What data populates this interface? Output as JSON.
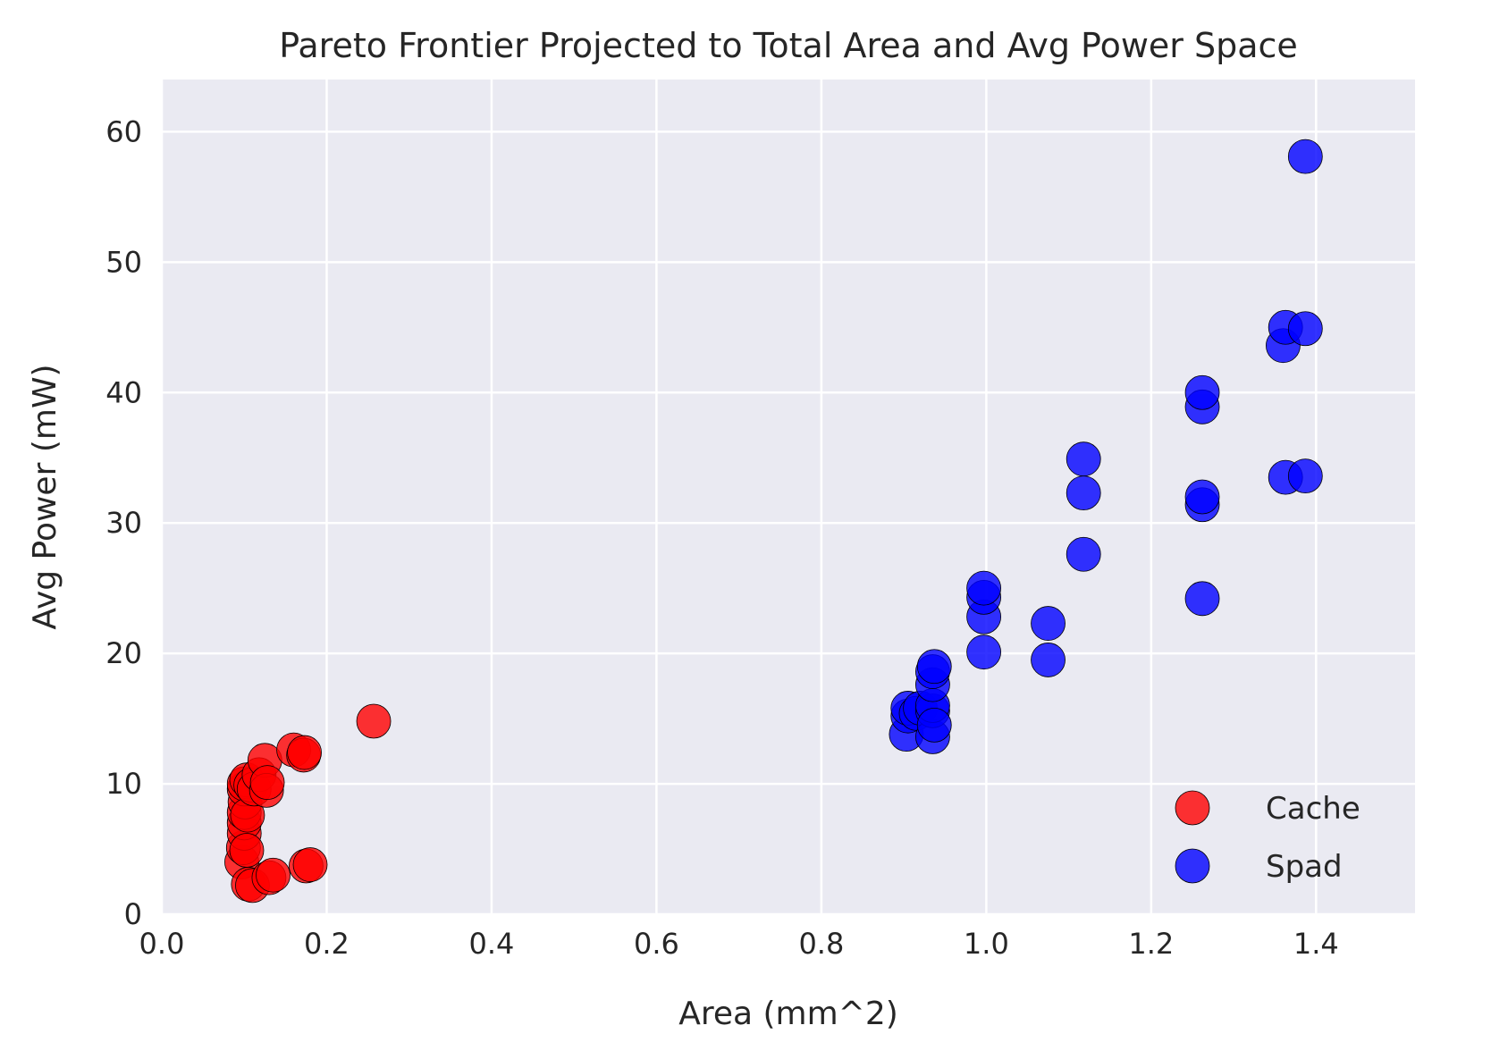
{
  "chart_data": {
    "type": "scatter",
    "title": "Pareto Frontier Projected to Total Area and Avg Power Space",
    "xlabel": "Area (mm^2)",
    "ylabel": "Avg Power (mW)",
    "xlim": [
      0.0,
      1.52
    ],
    "ylim": [
      0,
      64
    ],
    "xticks": [
      "0.0",
      "0.2",
      "0.4",
      "0.6",
      "0.8",
      "1.0",
      "1.2",
      "1.4"
    ],
    "xtick_values": [
      0.0,
      0.2,
      0.4,
      0.6,
      0.8,
      1.0,
      1.2,
      1.4
    ],
    "yticks": [
      "0",
      "10",
      "20",
      "30",
      "40",
      "50",
      "60"
    ],
    "ytick_values": [
      0,
      10,
      20,
      30,
      40,
      50,
      60
    ],
    "grid": true,
    "legend_position": "lower-right",
    "background_color": "#eaeaf2",
    "series": [
      {
        "name": "Cache",
        "color": "#ff0000",
        "points": [
          [
            0.097,
            4.0
          ],
          [
            0.099,
            5.1
          ],
          [
            0.1,
            6.2
          ],
          [
            0.1,
            7.0
          ],
          [
            0.1,
            7.8
          ],
          [
            0.101,
            8.6
          ],
          [
            0.1,
            9.6
          ],
          [
            0.1,
            10.0
          ],
          [
            0.103,
            10.3
          ],
          [
            0.104,
            7.6
          ],
          [
            0.103,
            4.9
          ],
          [
            0.105,
            2.3
          ],
          [
            0.11,
            2.2
          ],
          [
            0.108,
            9.9
          ],
          [
            0.112,
            9.6
          ],
          [
            0.118,
            10.7
          ],
          [
            0.125,
            11.8
          ],
          [
            0.127,
            9.5
          ],
          [
            0.128,
            10.1
          ],
          [
            0.13,
            2.8
          ],
          [
            0.135,
            3.0
          ],
          [
            0.16,
            12.6
          ],
          [
            0.172,
            12.2
          ],
          [
            0.173,
            12.4
          ],
          [
            0.175,
            3.7
          ],
          [
            0.18,
            3.8
          ],
          [
            0.257,
            14.8
          ]
        ]
      },
      {
        "name": "Spad",
        "color": "#0000ff",
        "points": [
          [
            0.903,
            13.8
          ],
          [
            0.905,
            15.2
          ],
          [
            0.905,
            15.8
          ],
          [
            0.915,
            15.4
          ],
          [
            0.92,
            15.8
          ],
          [
            0.935,
            13.6
          ],
          [
            0.935,
            15.6
          ],
          [
            0.935,
            16.0
          ],
          [
            0.935,
            17.6
          ],
          [
            0.935,
            18.6
          ],
          [
            0.937,
            19.0
          ],
          [
            0.937,
            14.5
          ],
          [
            0.997,
            20.1
          ],
          [
            0.997,
            22.8
          ],
          [
            0.997,
            24.3
          ],
          [
            0.997,
            25.0
          ],
          [
            1.075,
            19.5
          ],
          [
            1.075,
            22.3
          ],
          [
            1.118,
            27.6
          ],
          [
            1.118,
            32.3
          ],
          [
            1.118,
            34.9
          ],
          [
            1.262,
            24.2
          ],
          [
            1.262,
            31.4
          ],
          [
            1.262,
            32.0
          ],
          [
            1.262,
            38.9
          ],
          [
            1.262,
            40.0
          ],
          [
            1.36,
            43.6
          ],
          [
            1.363,
            45.0
          ],
          [
            1.363,
            33.5
          ],
          [
            1.387,
            44.9
          ],
          [
            1.387,
            33.6
          ],
          [
            1.387,
            58.1
          ]
        ]
      }
    ]
  }
}
